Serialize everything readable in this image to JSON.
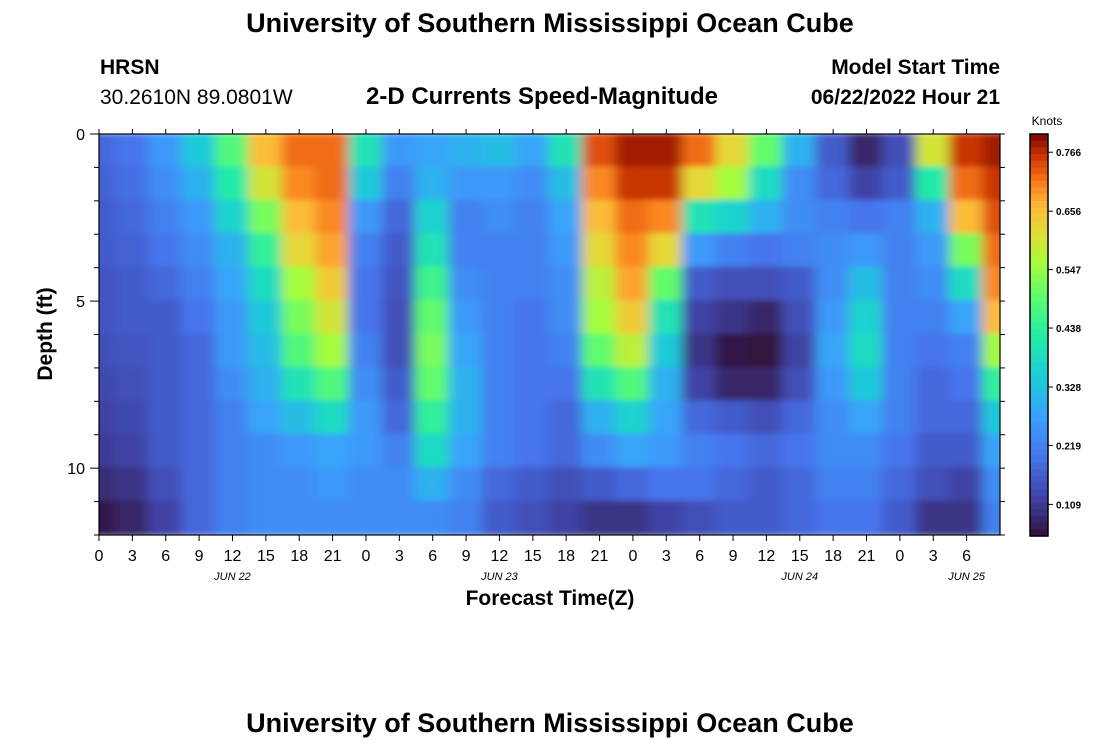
{
  "header": {
    "title": "University of Southern Mississippi Ocean Cube",
    "station": "HRSN",
    "coords": "30.2610N  89.0801W",
    "chart_title": "2-D Currents Speed-Magnitude",
    "model_label": "Model Start Time",
    "model_time": "06/22/2022 Hour 21"
  },
  "footer": {
    "title": "University of Southern Mississippi Ocean Cube"
  },
  "colors": {
    "low": "#30123b",
    "mid": "#2ef19c",
    "high": "#7a0403"
  },
  "chart_data": {
    "type": "heatmap",
    "title": "2-D Currents Speed-Magnitude",
    "xlabel": "Forecast Time(Z)",
    "ylabel": "Depth (ft)",
    "x_hours_from_jun22_00": [
      0,
      81
    ],
    "ylim": [
      0,
      12
    ],
    "x_ticks": [
      "0",
      "3",
      "6",
      "9",
      "12",
      "15",
      "18",
      "21",
      "0",
      "3",
      "6",
      "9",
      "12",
      "15",
      "18",
      "21",
      "0",
      "3",
      "6",
      "9",
      "12",
      "15",
      "18",
      "21",
      "0",
      "3",
      "6"
    ],
    "y_ticks": [
      "0",
      "5",
      "10"
    ],
    "date_labels": [
      {
        "text": "JUN 22",
        "hour": 12
      },
      {
        "text": "JUN 23",
        "hour": 36
      },
      {
        "text": "JUN 24",
        "hour": 63
      },
      {
        "text": "JUN 25",
        "hour": 78
      }
    ],
    "colorbar": {
      "label": "Knots",
      "min": 0.05,
      "max": 0.8,
      "ticks": [
        "0.766",
        "0.656",
        "0.547",
        "0.438",
        "0.328",
        "0.219",
        "0.109"
      ],
      "tick_values": [
        0.766,
        0.656,
        0.547,
        0.438,
        0.328,
        0.219,
        0.109
      ]
    },
    "depths_ft": [
      0.5,
      1.5,
      2.5,
      3.5,
      4.5,
      5.5,
      6.5,
      7.5,
      8.5,
      9.5,
      10.5,
      11.5
    ],
    "time_hours": [
      0,
      3,
      6,
      9,
      12,
      15,
      18,
      21,
      24,
      27,
      30,
      33,
      36,
      39,
      42,
      45,
      48,
      51,
      54,
      57,
      60,
      63,
      66,
      69,
      72,
      75,
      78,
      81
    ],
    "values": [
      [
        0.18,
        0.2,
        0.26,
        0.34,
        0.48,
        0.66,
        0.72,
        0.72,
        0.4,
        0.26,
        0.28,
        0.3,
        0.32,
        0.28,
        0.4,
        0.74,
        0.78,
        0.78,
        0.72,
        0.62,
        0.5,
        0.3,
        0.16,
        0.08,
        0.14,
        0.6,
        0.76,
        0.78
      ],
      [
        0.17,
        0.19,
        0.24,
        0.3,
        0.42,
        0.6,
        0.7,
        0.72,
        0.34,
        0.22,
        0.3,
        0.26,
        0.26,
        0.24,
        0.32,
        0.7,
        0.76,
        0.76,
        0.62,
        0.56,
        0.38,
        0.24,
        0.18,
        0.12,
        0.16,
        0.42,
        0.72,
        0.76
      ],
      [
        0.16,
        0.18,
        0.22,
        0.26,
        0.36,
        0.52,
        0.66,
        0.7,
        0.26,
        0.18,
        0.36,
        0.22,
        0.24,
        0.22,
        0.28,
        0.66,
        0.72,
        0.7,
        0.4,
        0.36,
        0.3,
        0.24,
        0.22,
        0.2,
        0.22,
        0.3,
        0.66,
        0.74
      ],
      [
        0.16,
        0.17,
        0.2,
        0.24,
        0.3,
        0.44,
        0.62,
        0.68,
        0.22,
        0.16,
        0.4,
        0.22,
        0.22,
        0.22,
        0.26,
        0.62,
        0.7,
        0.62,
        0.26,
        0.22,
        0.2,
        0.22,
        0.24,
        0.26,
        0.22,
        0.26,
        0.52,
        0.72
      ],
      [
        0.15,
        0.16,
        0.18,
        0.22,
        0.28,
        0.38,
        0.56,
        0.64,
        0.2,
        0.15,
        0.46,
        0.24,
        0.22,
        0.22,
        0.24,
        0.58,
        0.68,
        0.5,
        0.16,
        0.14,
        0.14,
        0.16,
        0.24,
        0.32,
        0.22,
        0.24,
        0.38,
        0.7
      ],
      [
        0.15,
        0.16,
        0.16,
        0.2,
        0.26,
        0.34,
        0.52,
        0.6,
        0.2,
        0.14,
        0.5,
        0.26,
        0.22,
        0.2,
        0.24,
        0.56,
        0.64,
        0.4,
        0.12,
        0.1,
        0.08,
        0.14,
        0.26,
        0.36,
        0.22,
        0.22,
        0.28,
        0.66
      ],
      [
        0.14,
        0.15,
        0.16,
        0.18,
        0.26,
        0.32,
        0.48,
        0.56,
        0.22,
        0.14,
        0.52,
        0.28,
        0.22,
        0.2,
        0.22,
        0.5,
        0.58,
        0.34,
        0.1,
        0.06,
        0.05,
        0.12,
        0.28,
        0.38,
        0.22,
        0.2,
        0.22,
        0.56
      ],
      [
        0.13,
        0.14,
        0.16,
        0.18,
        0.24,
        0.3,
        0.4,
        0.48,
        0.24,
        0.16,
        0.5,
        0.3,
        0.22,
        0.2,
        0.2,
        0.4,
        0.48,
        0.3,
        0.12,
        0.08,
        0.08,
        0.14,
        0.26,
        0.34,
        0.22,
        0.18,
        0.2,
        0.44
      ],
      [
        0.12,
        0.13,
        0.16,
        0.18,
        0.22,
        0.28,
        0.32,
        0.38,
        0.26,
        0.18,
        0.44,
        0.3,
        0.22,
        0.2,
        0.18,
        0.3,
        0.36,
        0.28,
        0.18,
        0.16,
        0.14,
        0.18,
        0.24,
        0.28,
        0.22,
        0.18,
        0.18,
        0.34
      ],
      [
        0.11,
        0.12,
        0.16,
        0.18,
        0.22,
        0.24,
        0.26,
        0.28,
        0.26,
        0.22,
        0.38,
        0.28,
        0.22,
        0.2,
        0.18,
        0.24,
        0.28,
        0.26,
        0.22,
        0.2,
        0.18,
        0.2,
        0.24,
        0.24,
        0.2,
        0.16,
        0.16,
        0.28
      ],
      [
        0.09,
        0.1,
        0.14,
        0.18,
        0.22,
        0.24,
        0.24,
        0.26,
        0.24,
        0.24,
        0.3,
        0.24,
        0.18,
        0.16,
        0.14,
        0.16,
        0.18,
        0.2,
        0.2,
        0.18,
        0.16,
        0.18,
        0.22,
        0.22,
        0.18,
        0.14,
        0.12,
        0.24
      ],
      [
        0.06,
        0.08,
        0.12,
        0.18,
        0.22,
        0.24,
        0.24,
        0.24,
        0.24,
        0.24,
        0.24,
        0.22,
        0.16,
        0.14,
        0.12,
        0.1,
        0.1,
        0.12,
        0.14,
        0.16,
        0.16,
        0.18,
        0.2,
        0.2,
        0.16,
        0.1,
        0.1,
        0.22
      ]
    ]
  }
}
